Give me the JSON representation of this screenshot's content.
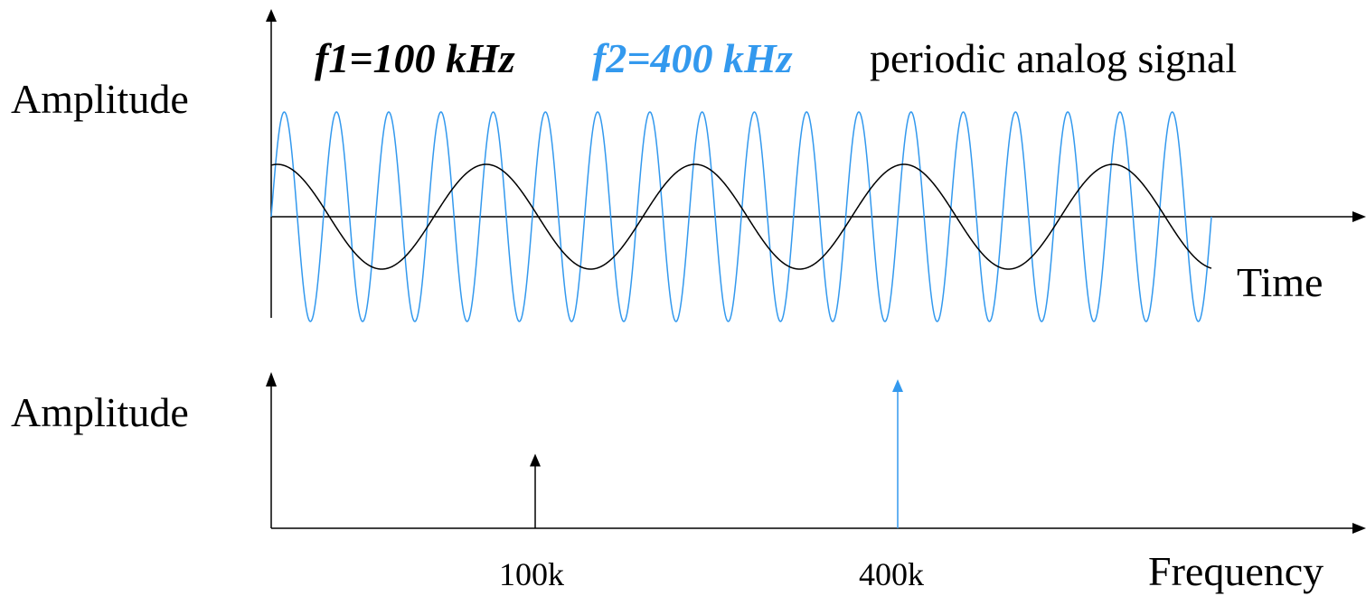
{
  "title": {
    "f1_text": "f1=100 kHz",
    "f2_text": "f2=400 kHz",
    "description": "periodic analog signal"
  },
  "time_domain": {
    "y_label": "Amplitude",
    "x_label": "Time"
  },
  "frequency_domain": {
    "y_label": "Amplitude",
    "x_label": "Frequency",
    "ticks": [
      "100k",
      "400k"
    ]
  },
  "colors": {
    "f1": "#000000",
    "f2": "#3399ee",
    "axis": "#000000"
  },
  "chart_data": [
    {
      "type": "line",
      "x_axis": "Time",
      "y_axis": "Amplitude",
      "series": [
        {
          "name": "f1=100 kHz",
          "frequency_khz": 100,
          "relative_amplitude": 0.5,
          "cycles_shown": 4.5,
          "color": "#000000"
        },
        {
          "name": "f2=400 kHz",
          "frequency_khz": 400,
          "relative_amplitude": 1.0,
          "cycles_shown": 18,
          "color": "#3399ee"
        }
      ]
    },
    {
      "type": "bar",
      "x_axis": "Frequency",
      "y_axis": "Amplitude",
      "categories": [
        "100k",
        "400k"
      ],
      "values": [
        0.5,
        1.0
      ],
      "colors": [
        "#000000",
        "#3399ee"
      ]
    }
  ]
}
